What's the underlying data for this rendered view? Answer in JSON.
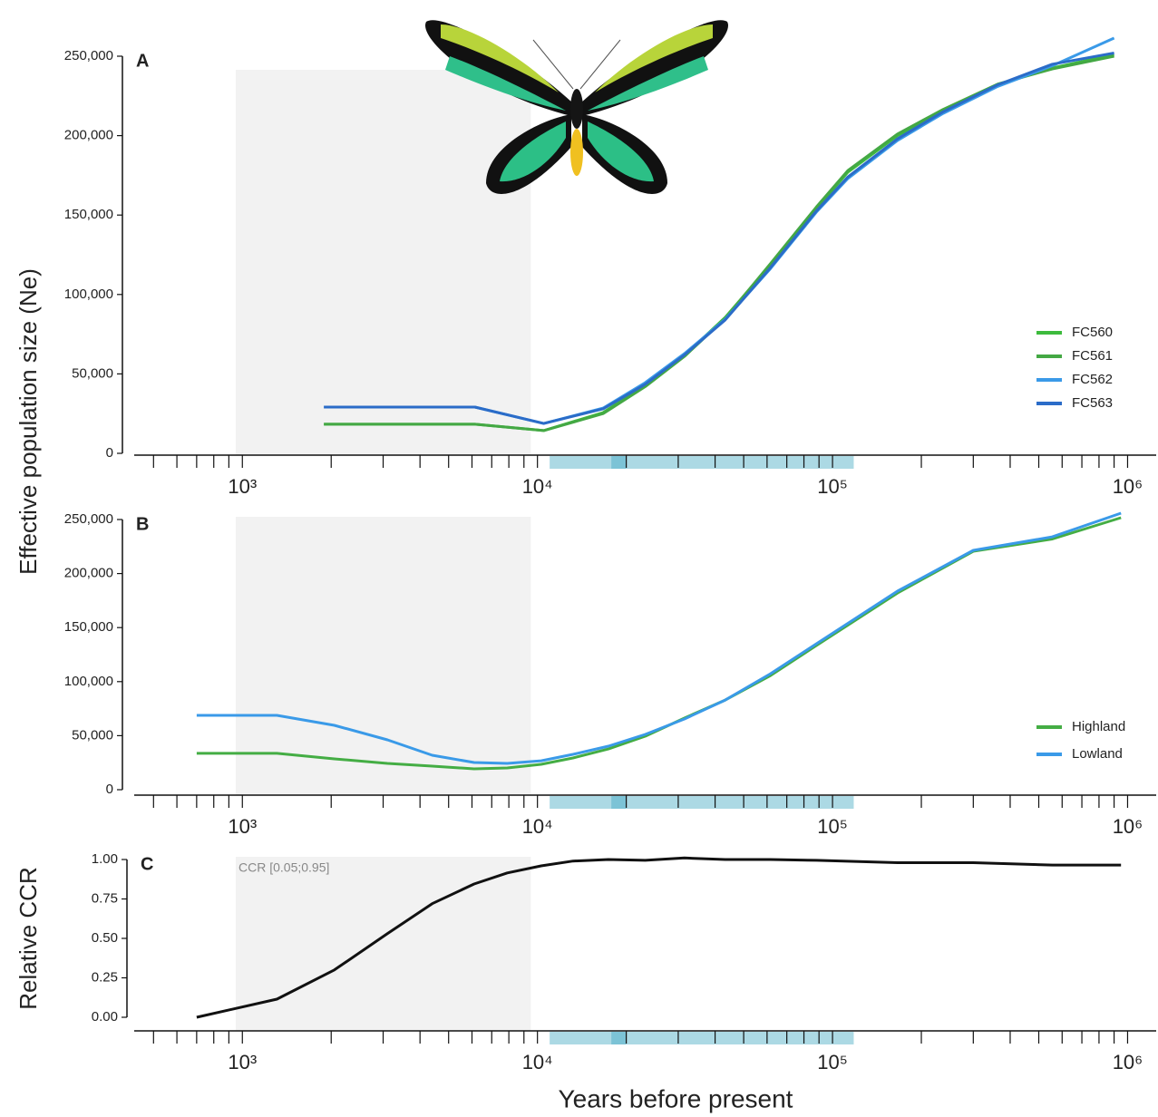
{
  "chart_data": [
    {
      "type": "line",
      "panel_label": "A",
      "ylabel": "Effective population size (Ne)",
      "xscale": "log",
      "xlim": [
        430,
        1250000
      ],
      "xticks": [
        {
          "value": 1000,
          "label": "10³"
        },
        {
          "value": 10000,
          "label": "10⁴"
        },
        {
          "value": 100000,
          "label": "10⁵"
        },
        {
          "value": 1000000,
          "label": "10⁶"
        }
      ],
      "xminorticks": [
        500,
        600,
        700,
        800,
        900,
        2000,
        3000,
        4000,
        5000,
        6000,
        7000,
        8000,
        9000,
        20000,
        30000,
        40000,
        50000,
        60000,
        70000,
        80000,
        90000,
        200000,
        300000,
        400000,
        500000,
        600000,
        700000,
        800000,
        900000
      ],
      "ylim": [
        0,
        250000
      ],
      "yticks": [
        0,
        {
          "value": 50000,
          "label": "50,000"
        },
        {
          "value": 100000,
          "label": "100,000"
        },
        {
          "value": 150000,
          "label": "150,000"
        },
        {
          "value": 200000,
          "label": "200,000"
        },
        {
          "value": 250000,
          "label": "250,000"
        }
      ],
      "shaded_regions": [
        {
          "xlim": [
            950,
            9500
          ],
          "color": "#f2f2f2"
        }
      ],
      "axis_bands": [
        {
          "xlim": [
            11000,
            118000
          ],
          "color": "#acd9e4"
        },
        {
          "xlim": [
            17800,
            20000
          ],
          "color": "#7cc3d6"
        }
      ],
      "legend": "right",
      "x": [
        1890,
        6140,
        10500,
        16700,
        23200,
        31500,
        43300,
        61700,
        88100,
        112700,
        166000,
        237000,
        363000,
        556000,
        900000
      ],
      "series": [
        {
          "name": "FC560",
          "color": "#3dbb3d",
          "values": [
            18300,
            18300,
            14300,
            25700,
            42800,
            61600,
            85600,
            118700,
            154000,
            177000,
            200000,
            215700,
            232000,
            242600,
            251000
          ]
        },
        {
          "name": "FC561",
          "color": "#44a844",
          "values": [
            18300,
            18300,
            14300,
            25000,
            42000,
            61000,
            85000,
            119500,
            155000,
            178000,
            201000,
            216500,
            232500,
            242000,
            250000
          ]
        },
        {
          "name": "FC562",
          "color": "#3a9ae8",
          "values": [
            29100,
            29100,
            18800,
            28500,
            44500,
            62800,
            84500,
            116400,
            151800,
            173000,
            197000,
            214000,
            231000,
            244000,
            261400
          ]
        },
        {
          "name": "FC563",
          "color": "#2b6cc8",
          "values": [
            29100,
            29100,
            18800,
            28000,
            43500,
            62000,
            84000,
            117000,
            152500,
            174000,
            198000,
            215000,
            232000,
            245000,
            252000
          ]
        }
      ]
    },
    {
      "type": "line",
      "panel_label": "B",
      "xscale": "log",
      "xlim": [
        430,
        1250000
      ],
      "xticks": [
        {
          "value": 1000,
          "label": "10³"
        },
        {
          "value": 10000,
          "label": "10⁴"
        },
        {
          "value": 100000,
          "label": "10⁵"
        },
        {
          "value": 1000000,
          "label": "10⁶"
        }
      ],
      "xminorticks": [
        500,
        600,
        700,
        800,
        900,
        2000,
        3000,
        4000,
        5000,
        6000,
        7000,
        8000,
        9000,
        20000,
        30000,
        40000,
        50000,
        60000,
        70000,
        80000,
        90000,
        200000,
        300000,
        400000,
        500000,
        600000,
        700000,
        800000,
        900000
      ],
      "ylim": [
        0,
        250000
      ],
      "yticks": [
        0,
        {
          "value": 50000,
          "label": "50,000"
        },
        {
          "value": 100000,
          "label": "100,000"
        },
        {
          "value": 150000,
          "label": "150,000"
        },
        {
          "value": 200000,
          "label": "200,000"
        },
        {
          "value": 250000,
          "label": "250,000"
        }
      ],
      "shaded_regions": [
        {
          "xlim": [
            950,
            9500
          ],
          "color": "#f2f2f2"
        }
      ],
      "axis_bands": [
        {
          "xlim": [
            11000,
            118000
          ],
          "color": "#acd9e4"
        },
        {
          "xlim": [
            17800,
            20000
          ],
          "color": "#7cc3d6"
        }
      ],
      "legend": "right",
      "x": [
        700,
        1310,
        2050,
        3100,
        4400,
        6100,
        7900,
        10300,
        13200,
        17400,
        23200,
        31500,
        43300,
        61700,
        88100,
        166000,
        300000,
        556000,
        950000
      ],
      "series": [
        {
          "name": "Highland",
          "color": "#44ad44",
          "values": [
            33600,
            33600,
            28500,
            24300,
            21800,
            19300,
            20100,
            23500,
            29400,
            37700,
            49500,
            66300,
            83000,
            105700,
            133400,
            182000,
            220600,
            232000,
            251700
          ]
        },
        {
          "name": "Lowland",
          "color": "#3a9ae8",
          "values": [
            68800,
            68800,
            59600,
            46100,
            31900,
            25200,
            24300,
            26800,
            32700,
            40300,
            51200,
            65400,
            83000,
            107400,
            135000,
            183700,
            221500,
            234000,
            255900
          ]
        }
      ]
    },
    {
      "type": "line",
      "panel_label": "C",
      "ylabel": "Relative CCR",
      "xlabel": "Years before present",
      "annotation": "CCR [0.05;0.95]",
      "xscale": "log",
      "xlim": [
        430,
        1250000
      ],
      "xticks": [
        {
          "value": 1000,
          "label": "10³"
        },
        {
          "value": 10000,
          "label": "10⁴"
        },
        {
          "value": 100000,
          "label": "10⁵"
        },
        {
          "value": 1000000,
          "label": "10⁶"
        }
      ],
      "xminorticks": [
        500,
        600,
        700,
        800,
        900,
        2000,
        3000,
        4000,
        5000,
        6000,
        7000,
        8000,
        9000,
        20000,
        30000,
        40000,
        50000,
        60000,
        70000,
        80000,
        90000,
        200000,
        300000,
        400000,
        500000,
        600000,
        700000,
        800000,
        900000
      ],
      "ylim": [
        0,
        1
      ],
      "yticks": [
        {
          "value": 0,
          "label": "0.00"
        },
        {
          "value": 0.25,
          "label": "0.25"
        },
        {
          "value": 0.5,
          "label": "0.50"
        },
        {
          "value": 0.75,
          "label": "0.75"
        },
        {
          "value": 1,
          "label": "1.00"
        }
      ],
      "shaded_regions": [
        {
          "xlim": [
            950,
            9500
          ],
          "color": "#f2f2f2"
        }
      ],
      "axis_bands": [
        {
          "xlim": [
            11000,
            118000
          ],
          "color": "#acd9e4"
        },
        {
          "xlim": [
            17800,
            20000
          ],
          "color": "#7cc3d6"
        }
      ],
      "x": [
        700,
        1310,
        2050,
        3100,
        4400,
        6100,
        7900,
        10300,
        13200,
        17400,
        23200,
        31500,
        43300,
        61700,
        88100,
        166000,
        300000,
        556000,
        950000
      ],
      "series": [
        {
          "color": "#111111",
          "values": [
            0,
            0.115,
            0.3,
            0.53,
            0.72,
            0.845,
            0.915,
            0.96,
            0.99,
            1.0,
            0.995,
            1.01,
            1.0,
            1.0,
            0.995,
            0.98,
            0.98,
            0.965,
            0.965
          ]
        }
      ]
    }
  ]
}
